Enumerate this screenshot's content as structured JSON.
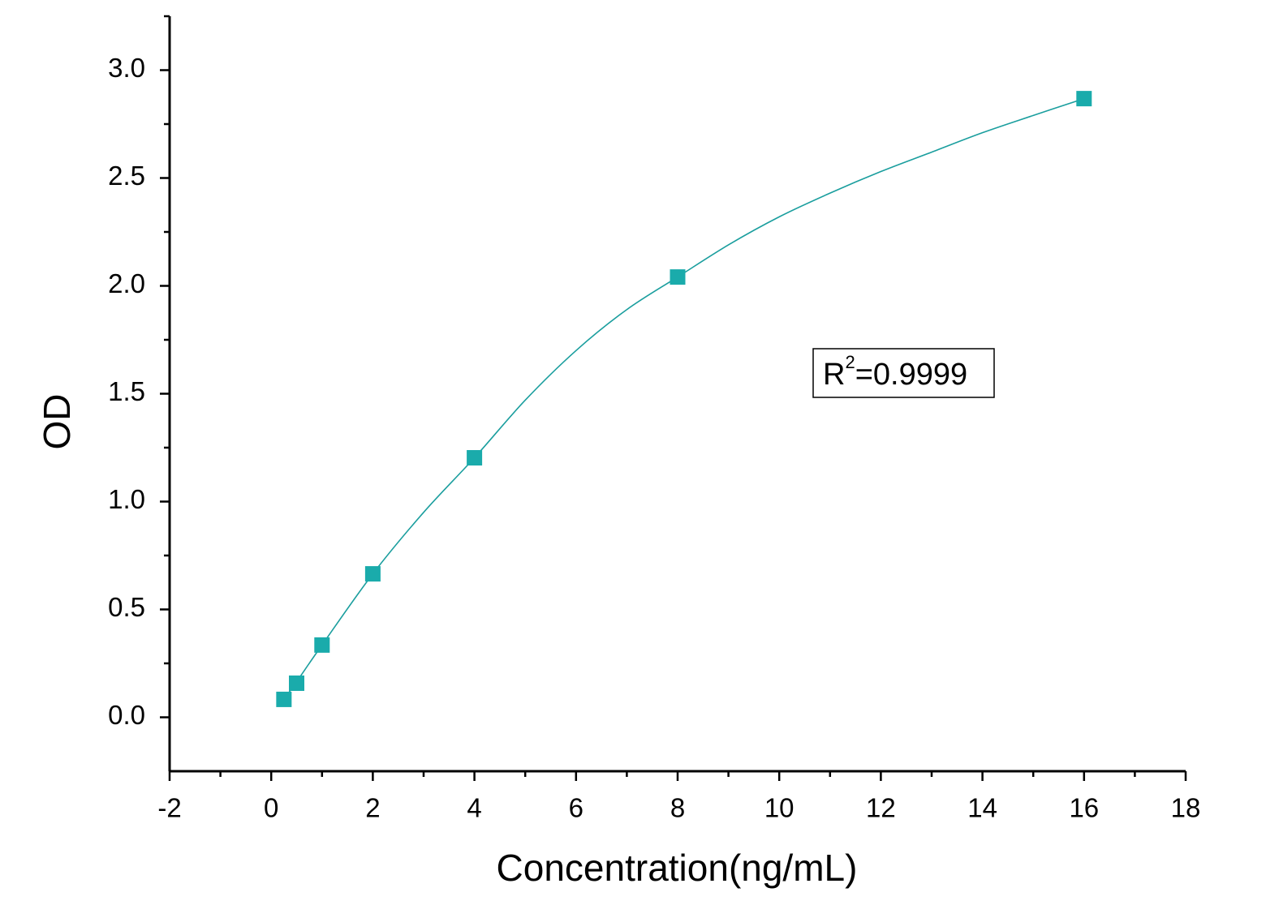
{
  "chart_data": {
    "type": "scatter",
    "x_label": "Concentration(ng/mL)",
    "y_label": "OD",
    "xlim": [
      -2,
      18
    ],
    "ylim": [
      -0.25,
      3.25
    ],
    "xticks": [
      -2,
      0,
      2,
      4,
      6,
      8,
      10,
      12,
      14,
      16,
      18
    ],
    "xminorticks": [
      -1,
      1,
      3,
      5,
      7,
      9,
      11,
      13,
      15,
      17
    ],
    "yticks": [
      {
        "value": 0,
        "label": "0.0"
      },
      0.5,
      {
        "value": 1,
        "label": "1.0"
      },
      1.5,
      {
        "value": 2,
        "label": "2.0"
      },
      2.5,
      {
        "value": 3,
        "label": "3.0"
      }
    ],
    "yminorticks": [
      0.25,
      0.75,
      1.25,
      1.75,
      2.25,
      2.75,
      3.25
    ],
    "grid": false,
    "series": [
      {
        "kind": "points",
        "color": "#1aabab",
        "x": [
          0.25,
          0.5,
          1,
          2,
          4,
          8,
          16
        ],
        "values": [
          0.083,
          0.158,
          0.335,
          0.665,
          1.203,
          2.041,
          2.868
        ]
      },
      {
        "kind": "fit",
        "color": "#1a9e9e",
        "x": [
          0.25,
          0.5,
          1,
          2,
          3,
          4,
          5,
          6,
          7,
          8,
          9,
          10,
          11,
          12,
          13,
          14,
          15,
          16
        ],
        "values": [
          0.083,
          0.165,
          0.335,
          0.665,
          0.95,
          1.203,
          1.47,
          1.7,
          1.89,
          2.041,
          2.19,
          2.32,
          2.43,
          2.53,
          2.62,
          2.71,
          2.79,
          2.868
        ]
      }
    ],
    "annotation": {
      "base": "R",
      "sup": "2",
      "text": "=0.9999"
    }
  }
}
